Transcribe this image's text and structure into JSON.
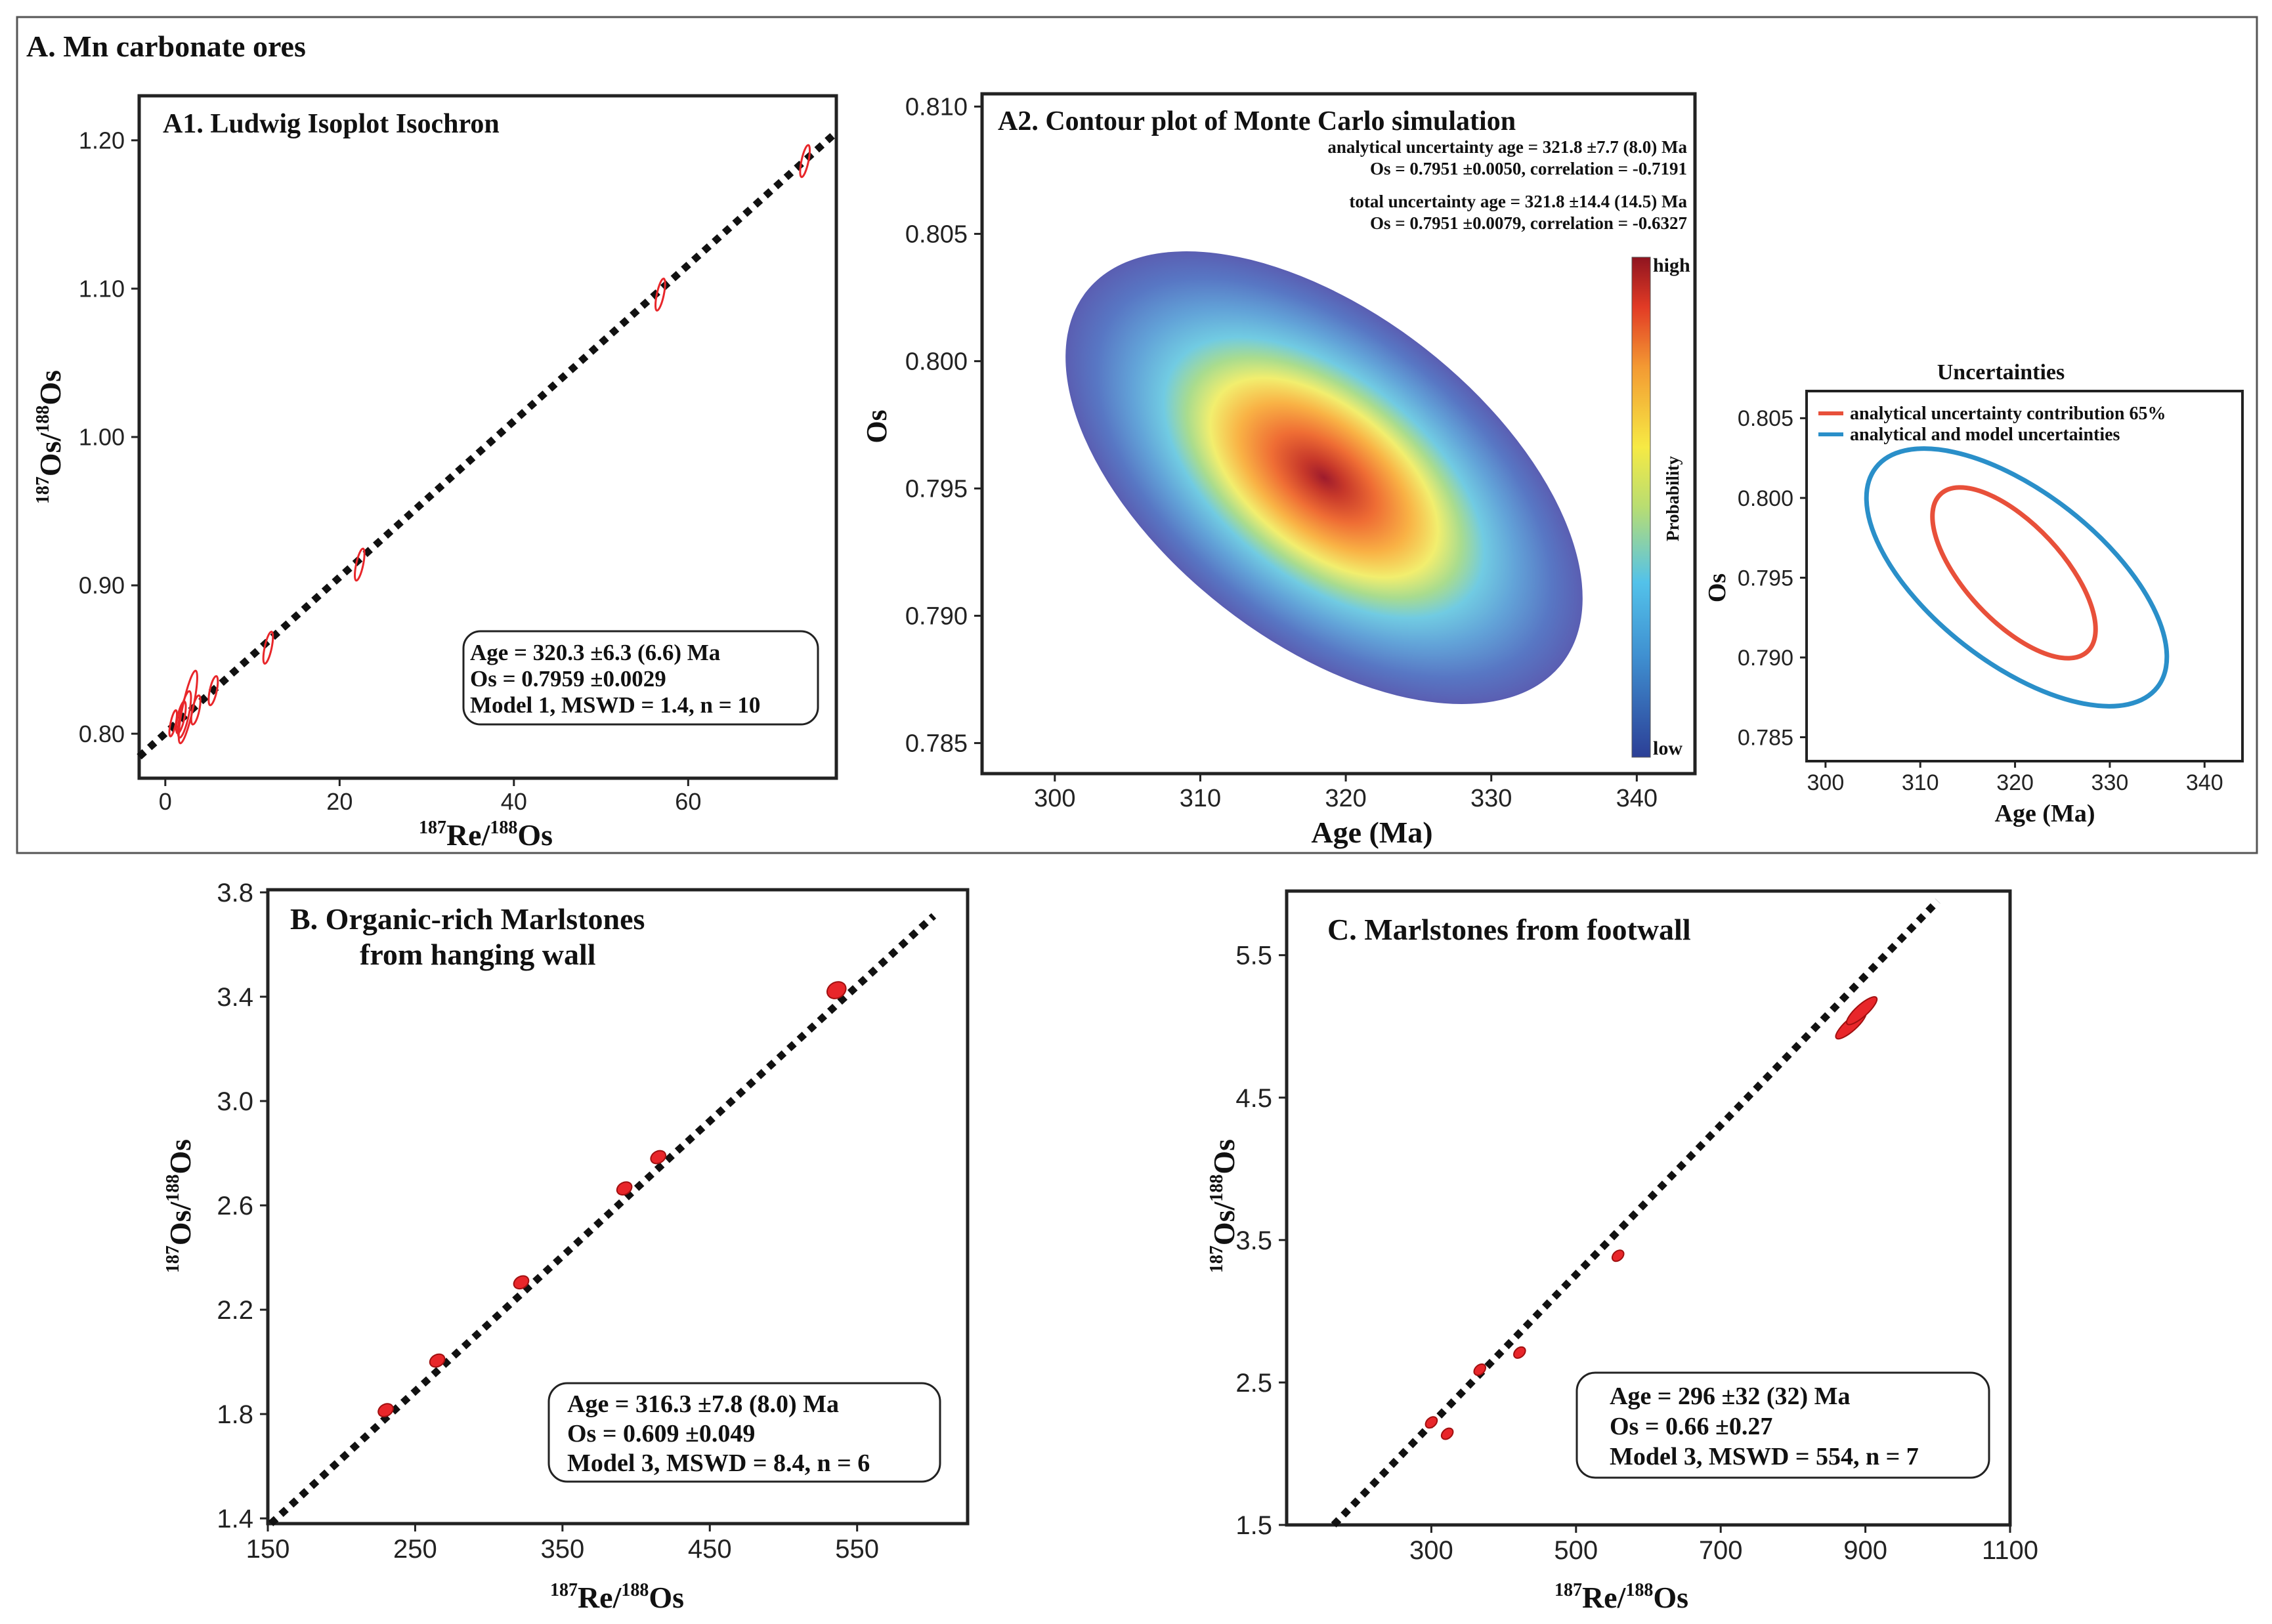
{
  "section_a_title": "A.  Mn carbonate ores",
  "colors": {
    "point": "#e8262a",
    "isochron": "#111111",
    "analytical_ellipse": "#e8503a",
    "total_ellipse": "#2a8fc9"
  },
  "chart_data": [
    {
      "id": "A1",
      "type": "scatter",
      "title": "A1.  Ludwig Isoplot Isochron",
      "xlabel_parts": [
        "187",
        "Re/",
        "188",
        "Os"
      ],
      "ylabel_parts": [
        "187",
        "Os/",
        "188",
        "Os"
      ],
      "xlim": [
        -3,
        77
      ],
      "ylim": [
        0.77,
        1.23
      ],
      "xticks": [
        0,
        20,
        40,
        60
      ],
      "xtick_labels": [
        "0",
        "20",
        "40",
        "60"
      ],
      "yticks": [
        0.8,
        0.9,
        1.0,
        1.1,
        1.2
      ],
      "ytick_labels": [
        "0.80",
        "0.90",
        "1.00",
        "1.10",
        "1.20"
      ],
      "line": {
        "x": [
          -3,
          77
        ],
        "y": [
          0.7845,
          1.2054
        ]
      },
      "points": [
        {
          "x": 0.9,
          "y": 0.807,
          "sx": 0.3,
          "sy": 0.009
        },
        {
          "x": 1.8,
          "y": 0.811,
          "sx": 0.4,
          "sy": 0.011
        },
        {
          "x": 2.2,
          "y": 0.813,
          "sx": 0.5,
          "sy": 0.016
        },
        {
          "x": 2.6,
          "y": 0.818,
          "sx": 0.6,
          "sy": 0.025
        },
        {
          "x": 3.5,
          "y": 0.816,
          "sx": 0.4,
          "sy": 0.01
        },
        {
          "x": 5.5,
          "y": 0.829,
          "sx": 0.4,
          "sy": 0.01
        },
        {
          "x": 11.8,
          "y": 0.858,
          "sx": 0.4,
          "sy": 0.011
        },
        {
          "x": 22.3,
          "y": 0.914,
          "sx": 0.4,
          "sy": 0.011
        },
        {
          "x": 56.8,
          "y": 1.096,
          "sx": 0.4,
          "sy": 0.011
        },
        {
          "x": 73.4,
          "y": 1.186,
          "sx": 0.4,
          "sy": 0.011
        }
      ],
      "legend": [
        "Age = 320.3 ±6.3 (6.6) Ma",
        "Os = 0.7959 ±0.0029",
        "Model 1,  MSWD = 1.4, n = 10"
      ]
    },
    {
      "id": "A2",
      "type": "heatmap",
      "title": "A2.  Contour plot of Monte Carlo simulation",
      "xlabel": "Age (Ma)",
      "ylabel": "Os",
      "xlim": [
        295,
        344
      ],
      "ylim": [
        0.7838,
        0.8105
      ],
      "xticks": [
        300,
        310,
        320,
        330,
        340
      ],
      "xtick_labels": [
        "300",
        "310",
        "320",
        "330",
        "340"
      ],
      "yticks": [
        0.785,
        0.79,
        0.795,
        0.8,
        0.805,
        0.81
      ],
      "ytick_labels": [
        "0.785",
        "0.790",
        "0.795",
        "0.800",
        "0.805",
        "0.810"
      ],
      "center": [
        321.8,
        0.7951
      ],
      "annotations": [
        "analytical uncertainty age = 321.8 ±7.7 (8.0) Ma",
        "Os = 0.7951 ±0.0050,  correlation = -0.7191",
        "total uncertainty age = 321.8 ±14.4 (14.5) Ma",
        "Os = 0.7951 ±0.0079,  correlation = -0.6327"
      ],
      "colorbar": {
        "high": "high",
        "low": "low",
        "label": "Probability"
      }
    },
    {
      "id": "A3",
      "type": "line",
      "title": "Uncertainties",
      "xlabel": "Age (Ma)",
      "ylabel": "Os",
      "xlim": [
        298,
        344
      ],
      "ylim": [
        0.7835,
        0.8067
      ],
      "xticks": [
        300,
        310,
        320,
        330,
        340
      ],
      "xtick_labels": [
        "300",
        "310",
        "320",
        "330",
        "340"
      ],
      "yticks": [
        0.785,
        0.79,
        0.795,
        0.8,
        0.805
      ],
      "ytick_labels": [
        "0.785",
        "0.790",
        "0.795",
        "0.800",
        "0.805"
      ],
      "series": [
        {
          "name": "analytical uncertainty contribution 65%",
          "center": [
            322.0,
            0.7951
          ]
        },
        {
          "name": "analytical and model uncertainties",
          "center": [
            321.5,
            0.7951
          ]
        }
      ]
    },
    {
      "id": "B",
      "type": "scatter",
      "title_lines": [
        "B. Organic-rich Marlstones",
        "from hanging wall"
      ],
      "xlabel_parts": [
        "187",
        "Re/",
        "188",
        "Os"
      ],
      "ylabel_parts": [
        "187",
        "Os/",
        "188",
        "Os"
      ],
      "xlim": [
        150,
        625
      ],
      "ylim": [
        1.38,
        3.81
      ],
      "xticks": [
        150,
        250,
        350,
        450,
        550
      ],
      "xtick_labels": [
        "150",
        "250",
        "350",
        "450",
        "550"
      ],
      "yticks": [
        1.4,
        1.8,
        2.2,
        2.6,
        3.0,
        3.4,
        3.8
      ],
      "ytick_labels": [
        "1.4",
        "1.8",
        "2.2",
        "2.6",
        "3.0",
        "3.4",
        "3.8"
      ],
      "line": {
        "x": [
          152,
          602
        ],
        "y": [
          1.38,
          3.71
        ]
      },
      "points": [
        {
          "x": 230,
          "y": 1.815
        },
        {
          "x": 265,
          "y": 2.005
        },
        {
          "x": 322,
          "y": 2.305
        },
        {
          "x": 392,
          "y": 2.665
        },
        {
          "x": 415,
          "y": 2.785
        },
        {
          "x": 536,
          "y": 3.425
        }
      ],
      "legend": [
        "Age = 316.3 ±7.8 (8.0) Ma",
        "Os = 0.609 ±0.049",
        "Model 3, MSWD = 8.4, n = 6"
      ]
    },
    {
      "id": "C",
      "type": "scatter",
      "title": "C. Marlstones from footwall",
      "xlabel_parts": [
        "187",
        "Re/",
        "188",
        "Os"
      ],
      "ylabel_parts": [
        "187",
        "Os/",
        "188",
        "Os"
      ],
      "xlim": [
        100,
        1100
      ],
      "ylim": [
        1.5,
        5.95
      ],
      "xticks": [
        300,
        500,
        700,
        900,
        1100
      ],
      "xtick_labels": [
        "300",
        "500",
        "700",
        "900",
        "1100"
      ],
      "yticks": [
        1.5,
        2.5,
        3.5,
        4.5,
        5.5
      ],
      "ytick_labels": [
        "1.5",
        "2.5",
        "3.5",
        "4.5",
        "5.5"
      ],
      "line": {
        "x": [
          165,
          1000
        ],
        "y": [
          1.5,
          5.88
        ]
      },
      "points": [
        {
          "x": 300,
          "y": 2.22
        },
        {
          "x": 322,
          "y": 2.14
        },
        {
          "x": 367,
          "y": 2.59
        },
        {
          "x": 422,
          "y": 2.71
        },
        {
          "x": 558,
          "y": 3.39
        },
        {
          "x": 880,
          "y": 5.01
        },
        {
          "x": 895,
          "y": 5.11
        }
      ],
      "legend": [
        "Age = 296 ±32 (32) Ma",
        "Os = 0.66 ±0.27",
        "Model 3, MSWD = 554, n = 7"
      ]
    }
  ]
}
